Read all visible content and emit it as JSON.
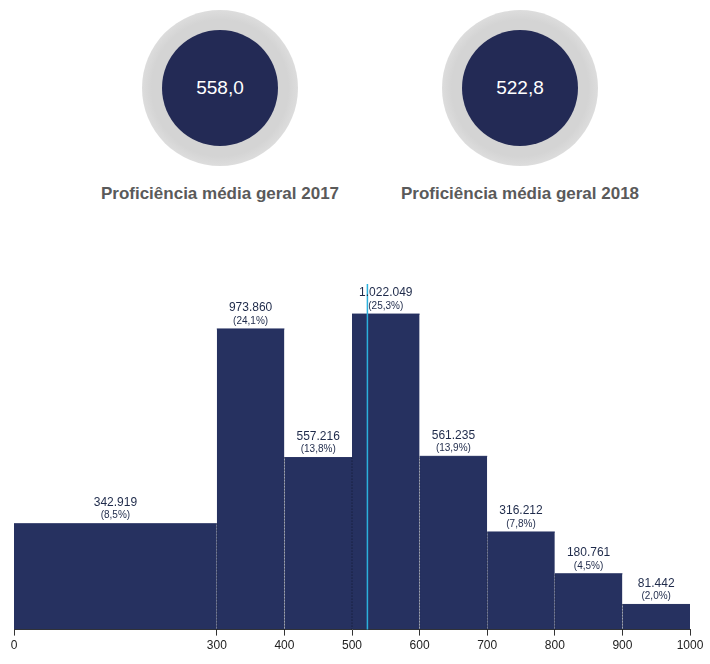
{
  "summary": [
    {
      "value": 558.0,
      "value_label": "558,0",
      "label": "Proficiência média geral 2017"
    },
    {
      "value": 522.8,
      "value_label": "522,8",
      "label": "Proficiência média geral 2018"
    }
  ],
  "chart_data": {
    "type": "histogram",
    "bins": [
      0,
      300,
      400,
      500,
      600,
      700,
      800,
      900,
      1000
    ],
    "values": [
      342919,
      973860,
      557216,
      1022049,
      561235,
      316212,
      180761,
      81442
    ],
    "value_labels": [
      "342.919",
      "973.860",
      "557.216",
      "1.022.049",
      "561.235",
      "316.212",
      "180.761",
      "81.442"
    ],
    "percentages": [
      8.5,
      24.1,
      13.8,
      25.3,
      13.9,
      7.8,
      4.5,
      2.0
    ],
    "percentage_labels": [
      "(8,5%)",
      "(24,1%)",
      "(13,8%)",
      "(25,3%)",
      "(13,9%)",
      "(7,8%)",
      "(4,5%)",
      "(2,0%)"
    ],
    "vline": 522.8,
    "color": "#263160",
    "xlim": [
      0,
      1000
    ],
    "xticks": [
      0,
      300,
      400,
      500,
      600,
      700,
      800,
      900,
      1000
    ],
    "ylim": [
      0,
      1100000
    ],
    "grid": false,
    "data_labels": true,
    "tick_labels": "x"
  }
}
